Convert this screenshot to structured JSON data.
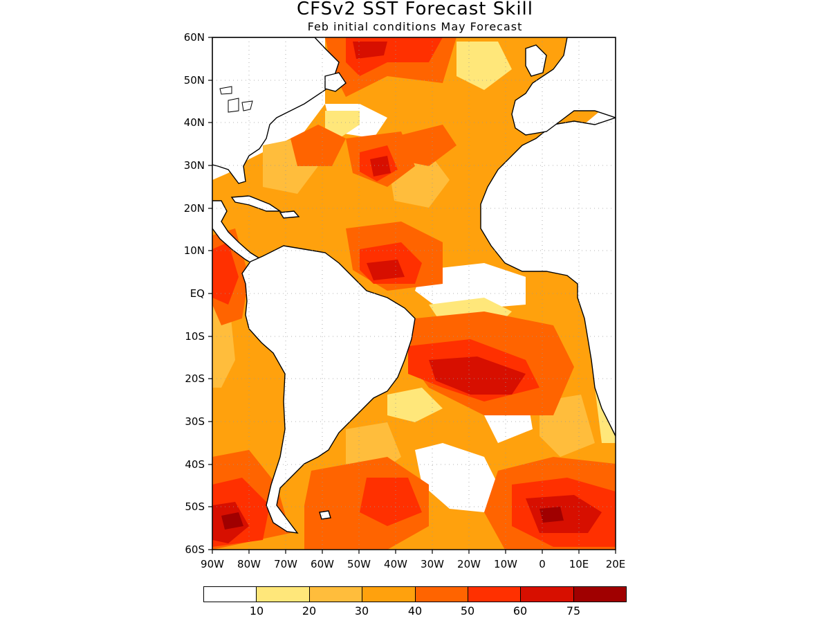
{
  "title": "CFSv2 SST Forecast Skill",
  "subtitle": "Feb initial conditions   May Forecast",
  "y_labels": [
    "60N",
    "50N",
    "40N",
    "30N",
    "20N",
    "10N",
    "EQ",
    "10S",
    "20S",
    "30S",
    "40S",
    "50S",
    "60S"
  ],
  "x_labels": [
    "90W",
    "80W",
    "70W",
    "60W",
    "50W",
    "40W",
    "30W",
    "20W",
    "10W",
    "0",
    "10E",
    "20E"
  ],
  "colorbar": {
    "colors": [
      "#ffffff",
      "#ffe77a",
      "#ffbd3c",
      "#ffa10d",
      "#ff6400",
      "#ff3000",
      "#d70f00",
      "#a00000"
    ],
    "labels": [
      "10",
      "20",
      "30",
      "40",
      "50",
      "60",
      "75"
    ]
  },
  "colors": {
    "land_fill": "#ffffff",
    "coast": "#000000",
    "grid": "#999999"
  }
}
